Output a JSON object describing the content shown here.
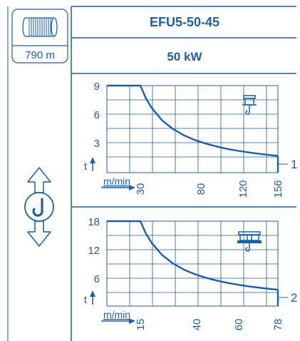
{
  "colors": {
    "accent": "#1d5fa4",
    "line": "#1d5fa4",
    "background": "#ffffff"
  },
  "header": {
    "title": "EFU5-50-45",
    "power": "50 kW",
    "cable_length": "790 m",
    "drum_icon": "cable-drum-icon",
    "hook_icon": "hook-up-down-icon"
  },
  "chart_data": [
    {
      "type": "line",
      "index_label": "1",
      "xlabel": "m/min",
      "ylabel": "t",
      "xlim": [
        0,
        160
      ],
      "ylim": [
        0,
        9
      ],
      "x_tick_labels": [
        "30",
        "80",
        "120",
        "156"
      ],
      "y_tick_labels": [
        "9",
        "6",
        "3"
      ],
      "icon": "single-hook-crane-icon",
      "grid": true,
      "series": [
        {
          "x": [
            0,
            30,
            35,
            40,
            50,
            60,
            70,
            80,
            90,
            100,
            110,
            120,
            130,
            140,
            150,
            156
          ],
          "y": [
            9,
            9,
            7.7,
            6.75,
            5.4,
            4.5,
            3.85,
            3.37,
            3.0,
            2.7,
            2.45,
            2.25,
            2.08,
            1.93,
            1.8,
            1.73
          ]
        }
      ]
    },
    {
      "type": "line",
      "index_label": "2",
      "xlabel": "m/min",
      "ylabel": "t",
      "xlim": [
        0,
        80
      ],
      "ylim": [
        0,
        18
      ],
      "x_tick_labels": [
        "15",
        "40",
        "60",
        "78"
      ],
      "y_tick_labels": [
        "18",
        "12",
        "6"
      ],
      "icon": "double-hook-crane-icon",
      "grid": true,
      "series": [
        {
          "x": [
            0,
            15,
            17.5,
            20,
            25,
            30,
            35,
            40,
            45,
            50,
            55,
            60,
            65,
            70,
            75,
            78
          ],
          "y": [
            18,
            18,
            15.4,
            13.5,
            10.8,
            9.0,
            7.7,
            6.75,
            6.0,
            5.4,
            4.9,
            4.5,
            4.15,
            3.85,
            3.6,
            3.46
          ]
        }
      ]
    }
  ]
}
